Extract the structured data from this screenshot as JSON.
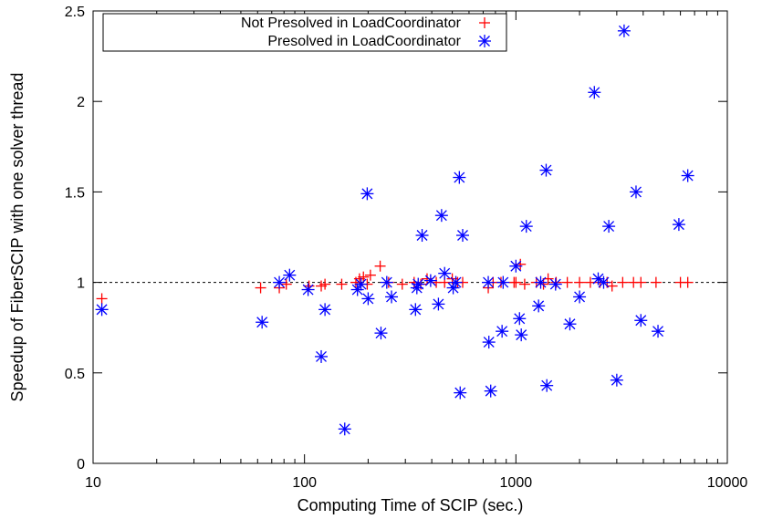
{
  "chart_data": {
    "type": "scatter",
    "xlabel": "Computing Time of SCIP (sec.)",
    "ylabel": "Speedup of FiberSCIP with one solver thread",
    "xscale": "log",
    "xlim": [
      10,
      10000
    ],
    "ylim": [
      0,
      2.5
    ],
    "xticks": [
      10,
      100,
      1000,
      10000
    ],
    "xtick_labels": [
      "10",
      "100",
      "1000",
      "10000"
    ],
    "yticks": [
      0,
      0.5,
      1,
      1.5,
      2,
      2.5
    ],
    "ytick_labels": [
      "0",
      "0.5",
      "1",
      "1.5",
      "2",
      "2.5"
    ],
    "reference_line": 1,
    "grid": false,
    "legend_position": "top-left",
    "series": [
      {
        "name": "Not Presolved in LoadCoordinator",
        "marker": "plus",
        "color": "#ff0000",
        "points": [
          [
            11,
            0.91
          ],
          [
            62,
            0.97
          ],
          [
            76,
            0.97
          ],
          [
            82,
            0.99
          ],
          [
            105,
            0.98
          ],
          [
            120,
            0.98
          ],
          [
            125,
            0.99
          ],
          [
            150,
            0.99
          ],
          [
            175,
            1.0
          ],
          [
            182,
            1.02
          ],
          [
            190,
            1.03
          ],
          [
            198,
            0.99
          ],
          [
            205,
            1.04
          ],
          [
            228,
            1.09
          ],
          [
            250,
            1.0
          ],
          [
            290,
            0.99
          ],
          [
            330,
            1.0
          ],
          [
            355,
            0.99
          ],
          [
            380,
            1.02
          ],
          [
            420,
            1.0
          ],
          [
            460,
            1.0
          ],
          [
            500,
            1.02
          ],
          [
            530,
            1.0
          ],
          [
            560,
            1.0
          ],
          [
            740,
            0.97
          ],
          [
            780,
            1.0
          ],
          [
            850,
            1.0
          ],
          [
            980,
            1.0
          ],
          [
            1000,
            1.0
          ],
          [
            1050,
            1.1
          ],
          [
            1100,
            0.99
          ],
          [
            1250,
            1.0
          ],
          [
            1350,
            0.99
          ],
          [
            1420,
            1.02
          ],
          [
            1550,
            1.0
          ],
          [
            1750,
            1.0
          ],
          [
            2000,
            1.0
          ],
          [
            2250,
            1.0
          ],
          [
            2500,
            1.0
          ],
          [
            2700,
            1.0
          ],
          [
            2850,
            0.98
          ],
          [
            3200,
            1.0
          ],
          [
            3600,
            1.0
          ],
          [
            3900,
            1.0
          ],
          [
            4600,
            1.0
          ],
          [
            6000,
            1.0
          ],
          [
            6500,
            1.0
          ]
        ]
      },
      {
        "name": "Presolved in LoadCoordinator",
        "marker": "asterisk",
        "color": "#0000ff",
        "points": [
          [
            11,
            0.85
          ],
          [
            63,
            0.78
          ],
          [
            76,
            1.0
          ],
          [
            85,
            1.04
          ],
          [
            104,
            0.96
          ],
          [
            120,
            0.59
          ],
          [
            125,
            0.85
          ],
          [
            155,
            0.19
          ],
          [
            178,
            0.96
          ],
          [
            185,
            0.99
          ],
          [
            198,
            1.49
          ],
          [
            200,
            0.91
          ],
          [
            230,
            0.72
          ],
          [
            245,
            1.0
          ],
          [
            258,
            0.92
          ],
          [
            335,
            0.85
          ],
          [
            340,
            0.97
          ],
          [
            345,
            0.99
          ],
          [
            360,
            1.26
          ],
          [
            395,
            1.01
          ],
          [
            430,
            0.88
          ],
          [
            445,
            1.37
          ],
          [
            460,
            1.05
          ],
          [
            505,
            0.97
          ],
          [
            520,
            1.0
          ],
          [
            540,
            1.58
          ],
          [
            545,
            0.39
          ],
          [
            560,
            1.26
          ],
          [
            740,
            1.0
          ],
          [
            745,
            0.67
          ],
          [
            760,
            0.4
          ],
          [
            860,
            0.73
          ],
          [
            870,
            1.0
          ],
          [
            1000,
            1.09
          ],
          [
            1040,
            0.8
          ],
          [
            1060,
            0.71
          ],
          [
            1120,
            1.31
          ],
          [
            1280,
            0.87
          ],
          [
            1310,
            1.0
          ],
          [
            1390,
            1.62
          ],
          [
            1400,
            0.43
          ],
          [
            1540,
            0.99
          ],
          [
            1800,
            0.77
          ],
          [
            2000,
            0.92
          ],
          [
            2350,
            2.05
          ],
          [
            2450,
            1.02
          ],
          [
            2600,
            1.0
          ],
          [
            2750,
            1.31
          ],
          [
            3000,
            0.46
          ],
          [
            3250,
            2.39
          ],
          [
            3700,
            1.5
          ],
          [
            3900,
            0.79
          ],
          [
            4700,
            0.73
          ],
          [
            5900,
            1.32
          ],
          [
            6500,
            1.59
          ]
        ]
      }
    ]
  }
}
